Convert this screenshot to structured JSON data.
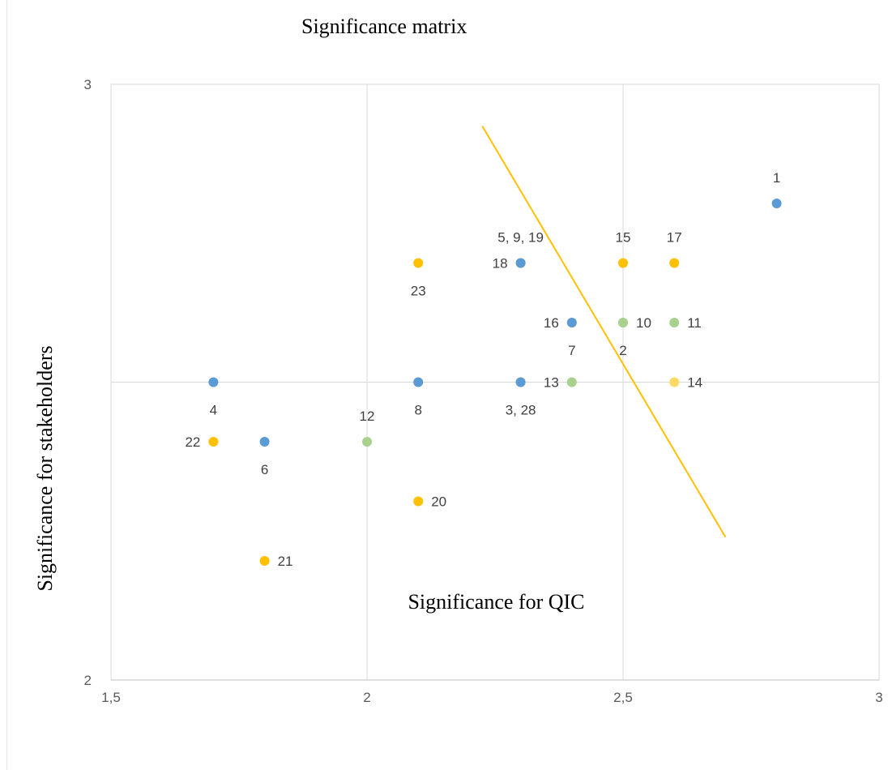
{
  "chart_data": {
    "type": "scatter",
    "title": "Significance matrix",
    "xlabel": "Significance for QIC",
    "ylabel": "Significance for stakeholders",
    "xlim": [
      1.5,
      3
    ],
    "ylim": [
      2,
      3
    ],
    "x_ticks": [
      {
        "value": 1.5,
        "label": "1,5"
      },
      {
        "value": 2,
        "label": "2"
      },
      {
        "value": 2.5,
        "label": "2,5"
      },
      {
        "value": 3,
        "label": "3"
      }
    ],
    "y_ticks": [
      {
        "value": 2,
        "label": "2"
      },
      {
        "value": 3,
        "label": "3"
      }
    ],
    "grid": true,
    "gridlines": {
      "x": [
        2,
        2.5
      ],
      "y": [
        2.5
      ]
    },
    "colors": {
      "blue": "#5b9bd5",
      "orange": "#ffc000",
      "green": "#a9d18e",
      "light_orange": "#ffd966",
      "trend_line": "#ffc000",
      "grid": "#d9d9d9",
      "axis": "#bfbfbf"
    },
    "points": [
      {
        "x": 2.8,
        "y": 2.8,
        "color": "blue",
        "label": "1",
        "label_pos": "above"
      },
      {
        "x": 1.7,
        "y": 2.5,
        "color": "blue",
        "label": "4",
        "label_pos": "below"
      },
      {
        "x": 1.8,
        "y": 2.4,
        "color": "blue",
        "label": "6",
        "label_pos": "below"
      },
      {
        "x": 1.7,
        "y": 2.4,
        "color": "orange",
        "label": "22",
        "label_pos": "left"
      },
      {
        "x": 1.8,
        "y": 2.2,
        "color": "orange",
        "label": "21",
        "label_pos": "right"
      },
      {
        "x": 2.0,
        "y": 2.4,
        "color": "green",
        "label": "12",
        "label_pos": "above"
      },
      {
        "x": 2.1,
        "y": 2.5,
        "color": "blue",
        "label": "8",
        "label_pos": "below"
      },
      {
        "x": 2.1,
        "y": 2.3,
        "color": "orange",
        "label": "20",
        "label_pos": "right"
      },
      {
        "x": 2.1,
        "y": 2.7,
        "color": "orange",
        "label": "23",
        "label_pos": "below"
      },
      {
        "x": 2.3,
        "y": 2.7,
        "color": "green",
        "label": "5, 9, 19",
        "label_pos": "above"
      },
      {
        "x": 2.3,
        "y": 2.7,
        "color": "orange",
        "label": "18",
        "label_pos": "left"
      },
      {
        "x": 2.3,
        "y": 2.7,
        "color": "blue",
        "label": "",
        "label_pos": "none"
      },
      {
        "x": 2.3,
        "y": 2.5,
        "color": "orange",
        "label": "3, 28",
        "label_pos": "below"
      },
      {
        "x": 2.3,
        "y": 2.5,
        "color": "blue",
        "label": "",
        "label_pos": "none"
      },
      {
        "x": 2.4,
        "y": 2.5,
        "color": "green",
        "label": "13",
        "label_pos": "left"
      },
      {
        "x": 2.4,
        "y": 2.6,
        "color": "orange",
        "label": "16",
        "label_pos": "left"
      },
      {
        "x": 2.4,
        "y": 2.6,
        "color": "blue",
        "label": "7",
        "label_pos": "below"
      },
      {
        "x": 2.5,
        "y": 2.6,
        "color": "green",
        "label": "10",
        "label_pos": "right"
      },
      {
        "x": 2.5,
        "y": 2.6,
        "color": "green",
        "label": "2",
        "label_pos": "below"
      },
      {
        "x": 2.5,
        "y": 2.7,
        "color": "orange",
        "label": "15",
        "label_pos": "above"
      },
      {
        "x": 2.6,
        "y": 2.7,
        "color": "orange",
        "label": "17",
        "label_pos": "above"
      },
      {
        "x": 2.6,
        "y": 2.6,
        "color": "green",
        "label": "11",
        "label_pos": "right"
      },
      {
        "x": 2.6,
        "y": 2.5,
        "color": "light_orange",
        "label": "14",
        "label_pos": "right"
      }
    ],
    "trend_line": {
      "from": {
        "x": 2.225,
        "y": 2.93
      },
      "to": {
        "x": 2.7,
        "y": 2.24
      }
    }
  }
}
